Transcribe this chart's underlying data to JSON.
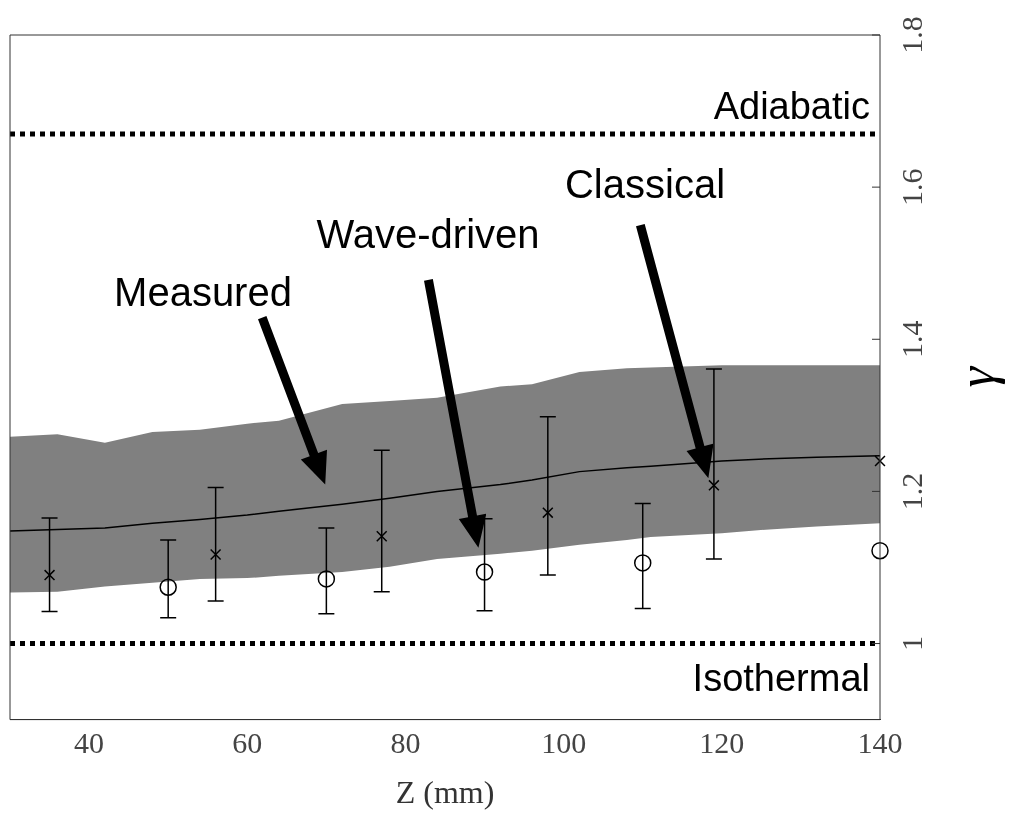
{
  "chart_data": {
    "type": "line",
    "xlabel": "Z (mm)",
    "ylabel": "γ",
    "xlim": [
      30,
      140
    ],
    "ylim": [
      0.9,
      1.8
    ],
    "xticks": [
      40,
      60,
      80,
      100,
      120,
      140
    ],
    "yticks": [
      1,
      1.2,
      1.4,
      1.6,
      1.8
    ],
    "series": [
      {
        "type": "line",
        "color": "#000000",
        "marker": "none",
        "x": [
          30,
          36,
          42,
          48,
          54,
          60,
          64,
          72,
          78,
          84,
          92,
          96,
          102,
          108,
          111,
          120,
          126,
          132,
          140
        ],
        "values": [
          1.148,
          1.15,
          1.152,
          1.158,
          1.163,
          1.169,
          1.174,
          1.183,
          1.191,
          1.2,
          1.209,
          1.215,
          1.226,
          1.231,
          1.233,
          1.24,
          1.243,
          1.245,
          1.247
        ],
        "lower": [
          1.067,
          1.068,
          1.075,
          1.08,
          1.085,
          1.086,
          1.089,
          1.094,
          1.101,
          1.111,
          1.118,
          1.122,
          1.13,
          1.136,
          1.14,
          1.145,
          1.15,
          1.154,
          1.158
        ],
        "upper": [
          1.272,
          1.275,
          1.264,
          1.278,
          1.281,
          1.289,
          1.293,
          1.315,
          1.319,
          1.323,
          1.338,
          1.341,
          1.357,
          1.362,
          1.363,
          1.366,
          1.366,
          1.366,
          1.366
        ]
      },
      {
        "type": "scatter",
        "color": "#000000",
        "marker": "cross",
        "x": [
          35,
          56,
          77,
          98,
          119,
          140
        ],
        "values": [
          1.09,
          1.117,
          1.141,
          1.172,
          1.208,
          1.24
        ],
        "errors": [
          [
            1.042,
            1.165
          ],
          [
            1.056,
            1.205
          ],
          [
            1.068,
            1.254
          ],
          [
            1.09,
            1.298
          ],
          [
            1.111,
            1.361
          ],
          null
        ]
      },
      {
        "type": "scatter",
        "color": "#000000",
        "marker": "circle",
        "x": [
          50,
          70,
          90,
          110,
          140
        ],
        "values": [
          1.074,
          1.085,
          1.094,
          1.106,
          1.122
        ],
        "errors": [
          [
            1.034,
            1.136
          ],
          [
            1.039,
            1.152
          ],
          [
            1.043,
            1.164
          ],
          [
            1.046,
            1.184
          ],
          null
        ]
      }
    ],
    "ref_lines": [
      {
        "axis": "y",
        "value": 1.67,
        "label": "Adiabatic",
        "line_style": "dotted",
        "color": "#000000"
      },
      {
        "axis": "y",
        "value": 1,
        "label": "Isothermal",
        "line_style": "dotted",
        "color": "#000000"
      }
    ],
    "annotations": [
      "Measured",
      "Wave-driven",
      "Classical"
    ]
  }
}
